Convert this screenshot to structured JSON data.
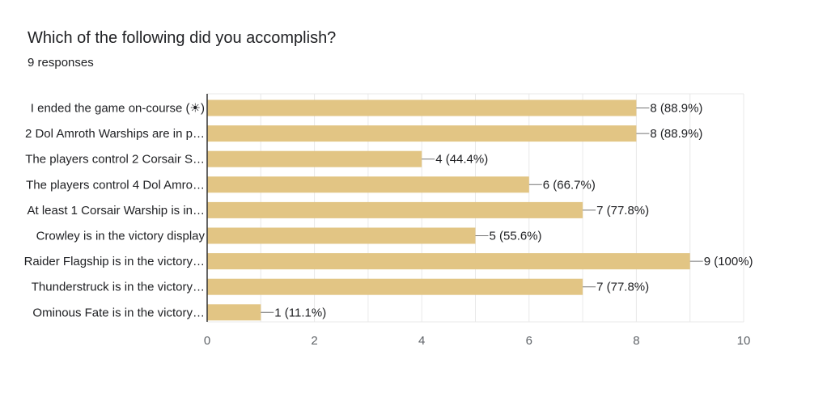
{
  "header": {
    "title": "Which of the following did you accomplish?",
    "subtitle": "9 responses"
  },
  "colors": {
    "bar": "#e2c584",
    "grid": "#e8e8e8",
    "axis": "#333333",
    "leader": "#757575"
  },
  "chart_data": {
    "type": "bar",
    "orientation": "horizontal",
    "categories": [
      "I ended the game on-course (☀)",
      "2 Dol Amroth Warships are in p…",
      "The players control 2 Corsair S…",
      "The players control 4 Dol Amro…",
      "At least 1 Corsair Warship is in…",
      "Crowley is in the victory display",
      "Raider Flagship is in the victory…",
      "Thunderstruck is in the victory…",
      "Ominous Fate is in the victory…"
    ],
    "values": [
      8,
      8,
      4,
      6,
      7,
      5,
      9,
      7,
      1
    ],
    "value_labels": [
      "8 (88.9%)",
      "8 (88.9%)",
      "4 (44.4%)",
      "6 (66.7%)",
      "7 (77.8%)",
      "5 (55.6%)",
      "9 (100%)",
      "7 (77.8%)",
      "1 (11.1%)"
    ],
    "xlim": [
      0,
      10
    ],
    "xticks": [
      "0",
      "2",
      "4",
      "6",
      "8",
      "10"
    ],
    "grid": true
  }
}
